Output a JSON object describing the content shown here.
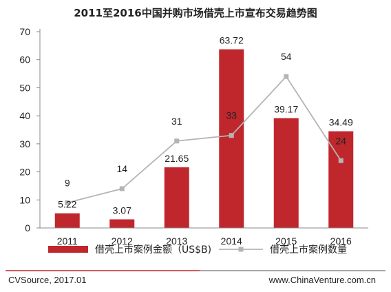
{
  "chart_data": {
    "type": "bar",
    "title": "2011至2016中国并购市场借壳上市宣布交易趋势图",
    "categories": [
      "2011",
      "2012",
      "2013",
      "2014",
      "2015",
      "2016"
    ],
    "ylim": [
      0,
      70
    ],
    "yticks": [
      0,
      10,
      20,
      30,
      40,
      50,
      60,
      70
    ],
    "grid": false,
    "legend_position": "bottom",
    "series": [
      {
        "name": "借壳上市案例金额（US$B)",
        "type": "bar",
        "color": "#c0272d",
        "values": [
          5.22,
          3.07,
          21.65,
          63.72,
          39.17,
          34.49
        ],
        "labels": [
          "5.22",
          "3.07",
          "21.65",
          "63.72",
          "39.17",
          "34.49"
        ]
      },
      {
        "name": "借壳上市案例数量",
        "type": "line",
        "color": "#b4b4b4",
        "values": [
          9,
          14,
          31,
          33,
          54,
          24
        ],
        "labels": [
          "9",
          "14",
          "31",
          "33",
          "54",
          "24"
        ]
      }
    ]
  },
  "footer": {
    "source": "CVSource, 2017.01",
    "website": "www.ChinaVenture.com.cn"
  }
}
